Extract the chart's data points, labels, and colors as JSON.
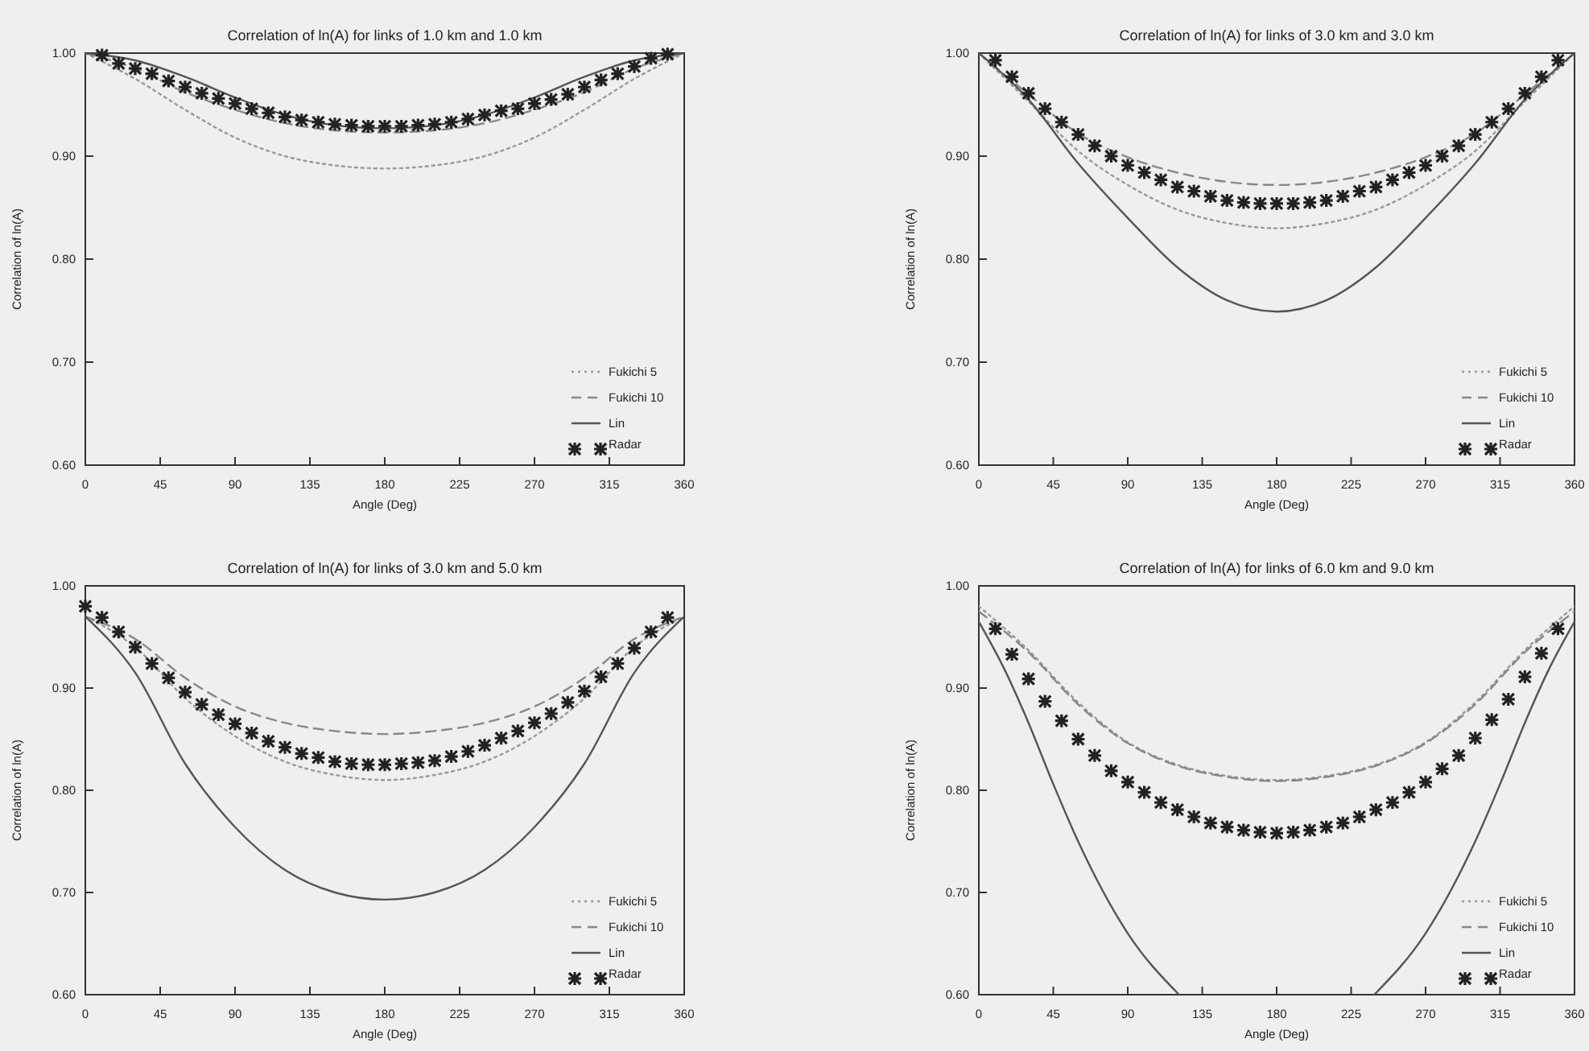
{
  "chart_data": [
    {
      "type": "line",
      "title": "Correlation of ln(A) for links of 1.0 km and 1.0 km",
      "xlabel": "Angle (Deg)",
      "ylabel": "Correlation of ln(A)",
      "xlim": [
        0,
        360
      ],
      "xticks": [
        0,
        45,
        90,
        135,
        180,
        225,
        270,
        315,
        360
      ],
      "ylim": [
        0.6,
        1.0
      ],
      "yticks": [
        {
          "value": 0.6,
          "label": "0.60"
        },
        {
          "value": 0.7,
          "label": "0.70"
        },
        {
          "value": 0.8,
          "label": "0.80"
        },
        {
          "value": 0.9,
          "label": "0.90"
        },
        {
          "value": 1.0,
          "label": "1.00"
        }
      ],
      "legend": "bottom right",
      "grid": false,
      "series": [
        {
          "name": "Fukichi 5",
          "color": "#999999",
          "line_style": "dotted",
          "marker": "none",
          "x": [
            0,
            30,
            60,
            90,
            120,
            150,
            180,
            210,
            240,
            270,
            300,
            330,
            360
          ],
          "values": [
            1.0,
            0.975,
            0.945,
            0.918,
            0.9,
            0.891,
            0.888,
            0.891,
            0.9,
            0.918,
            0.945,
            0.975,
            1.0
          ]
        },
        {
          "name": "Fukichi 10",
          "color": "#888888",
          "line_style": "dashed",
          "marker": "none",
          "x": [
            0,
            30,
            60,
            90,
            120,
            150,
            180,
            210,
            240,
            270,
            300,
            330,
            360
          ],
          "values": [
            1.0,
            0.985,
            0.962,
            0.945,
            0.932,
            0.925,
            0.923,
            0.925,
            0.932,
            0.945,
            0.962,
            0.985,
            1.0
          ]
        },
        {
          "name": "Lin",
          "color": "#555555",
          "line_style": "solid",
          "marker": "none",
          "x": [
            0,
            30,
            60,
            90,
            120,
            150,
            180,
            210,
            240,
            270,
            300,
            330,
            360
          ],
          "values": [
            1.0,
            0.993,
            0.977,
            0.957,
            0.94,
            0.93,
            0.927,
            0.93,
            0.94,
            0.957,
            0.977,
            0.993,
            1.0
          ]
        },
        {
          "name": "Radar",
          "type": "scatter",
          "color": "#222222",
          "marker": "cross",
          "x": [
            10,
            20,
            30,
            40,
            50,
            60,
            70,
            80,
            90,
            100,
            110,
            120,
            130,
            140,
            150,
            160,
            170,
            180,
            190,
            200,
            210,
            220,
            230,
            240,
            250,
            260,
            270,
            280,
            290,
            300,
            310,
            320,
            330,
            340,
            350
          ],
          "values": [
            0.998,
            0.99,
            0.985,
            0.98,
            0.973,
            0.967,
            0.961,
            0.956,
            0.951,
            0.946,
            0.942,
            0.938,
            0.935,
            0.933,
            0.931,
            0.93,
            0.929,
            0.929,
            0.929,
            0.93,
            0.931,
            0.933,
            0.936,
            0.94,
            0.944,
            0.946,
            0.951,
            0.955,
            0.96,
            0.967,
            0.974,
            0.98,
            0.987,
            0.995,
            0.999
          ]
        }
      ]
    },
    {
      "type": "line",
      "title": "Correlation of ln(A) for links of 3.0 km and 3.0 km",
      "xlabel": "Angle (Deg)",
      "ylabel": "Correlation of ln(A)",
      "xlim": [
        0,
        360
      ],
      "xticks": [
        0,
        45,
        90,
        135,
        180,
        225,
        270,
        315,
        360
      ],
      "ylim": [
        0.6,
        1.0
      ],
      "yticks": [
        {
          "value": 0.6,
          "label": "0.60"
        },
        {
          "value": 0.7,
          "label": "0.70"
        },
        {
          "value": 0.8,
          "label": "0.80"
        },
        {
          "value": 0.9,
          "label": "0.90"
        },
        {
          "value": 1.0,
          "label": "1.00"
        }
      ],
      "legend": "bottom right",
      "grid": false,
      "series": [
        {
          "name": "Fukichi 5",
          "color": "#999999",
          "line_style": "dotted",
          "marker": "none",
          "x": [
            0,
            30,
            60,
            90,
            120,
            150,
            180,
            210,
            240,
            270,
            300,
            330,
            360
          ],
          "values": [
            1.0,
            0.953,
            0.905,
            0.872,
            0.848,
            0.835,
            0.83,
            0.835,
            0.848,
            0.872,
            0.905,
            0.953,
            1.0
          ]
        },
        {
          "name": "Fukichi 10",
          "color": "#888888",
          "line_style": "dashed",
          "marker": "none",
          "x": [
            0,
            30,
            60,
            90,
            120,
            150,
            180,
            210,
            240,
            270,
            300,
            330,
            360
          ],
          "values": [
            1.0,
            0.96,
            0.922,
            0.899,
            0.884,
            0.875,
            0.872,
            0.875,
            0.884,
            0.899,
            0.922,
            0.96,
            1.0
          ]
        },
        {
          "name": "Lin",
          "color": "#555555",
          "line_style": "solid",
          "marker": "none",
          "x": [
            0,
            30,
            60,
            90,
            120,
            150,
            180,
            210,
            240,
            270,
            300,
            330,
            360
          ],
          "values": [
            1.0,
            0.955,
            0.893,
            0.84,
            0.792,
            0.76,
            0.749,
            0.76,
            0.792,
            0.84,
            0.893,
            0.955,
            1.0
          ]
        },
        {
          "name": "Radar",
          "type": "scatter",
          "color": "#222222",
          "marker": "cross",
          "x": [
            10,
            20,
            30,
            40,
            50,
            60,
            70,
            80,
            90,
            100,
            110,
            120,
            130,
            140,
            150,
            160,
            170,
            180,
            190,
            200,
            210,
            220,
            230,
            240,
            250,
            260,
            270,
            280,
            290,
            300,
            310,
            320,
            330,
            340,
            350
          ],
          "values": [
            0.993,
            0.977,
            0.961,
            0.946,
            0.933,
            0.921,
            0.91,
            0.9,
            0.891,
            0.884,
            0.877,
            0.87,
            0.866,
            0.861,
            0.857,
            0.855,
            0.854,
            0.854,
            0.854,
            0.855,
            0.857,
            0.861,
            0.866,
            0.87,
            0.877,
            0.884,
            0.891,
            0.9,
            0.91,
            0.921,
            0.933,
            0.946,
            0.961,
            0.977,
            0.993
          ]
        }
      ]
    },
    {
      "type": "line",
      "title": "Correlation of ln(A) for links of 3.0 km and 5.0 km",
      "xlabel": "Angle (Deg)",
      "ylabel": "Correlation of ln(A)",
      "xlim": [
        0,
        360
      ],
      "xticks": [
        0,
        45,
        90,
        135,
        180,
        225,
        270,
        315,
        360
      ],
      "ylim": [
        0.6,
        1.0
      ],
      "yticks": [
        {
          "value": 0.6,
          "label": "0.60"
        },
        {
          "value": 0.7,
          "label": "0.70"
        },
        {
          "value": 0.8,
          "label": "0.80"
        },
        {
          "value": 0.9,
          "label": "0.90"
        },
        {
          "value": 1.0,
          "label": "1.00"
        }
      ],
      "legend": "bottom right",
      "grid": false,
      "series": [
        {
          "name": "Fukichi 5",
          "color": "#999999",
          "line_style": "dotted",
          "marker": "none",
          "x": [
            0,
            30,
            60,
            90,
            120,
            150,
            180,
            210,
            240,
            270,
            300,
            330,
            360
          ],
          "values": [
            0.97,
            0.94,
            0.89,
            0.853,
            0.828,
            0.815,
            0.81,
            0.815,
            0.828,
            0.853,
            0.89,
            0.94,
            0.97
          ]
        },
        {
          "name": "Fukichi 10",
          "color": "#888888",
          "line_style": "dashed",
          "marker": "none",
          "x": [
            0,
            30,
            60,
            90,
            120,
            150,
            180,
            210,
            240,
            270,
            300,
            330,
            360
          ],
          "values": [
            0.97,
            0.948,
            0.91,
            0.882,
            0.866,
            0.858,
            0.855,
            0.858,
            0.866,
            0.882,
            0.91,
            0.948,
            0.97
          ]
        },
        {
          "name": "Lin",
          "color": "#555555",
          "line_style": "solid",
          "marker": "none",
          "x": [
            0,
            30,
            60,
            90,
            120,
            150,
            180,
            210,
            240,
            270,
            300,
            330,
            360
          ],
          "values": [
            0.97,
            0.915,
            0.826,
            0.764,
            0.722,
            0.7,
            0.693,
            0.7,
            0.722,
            0.764,
            0.826,
            0.915,
            0.97
          ]
        },
        {
          "name": "Radar",
          "type": "scatter",
          "color": "#222222",
          "marker": "cross",
          "x": [
            0,
            10,
            20,
            30,
            40,
            50,
            60,
            70,
            80,
            90,
            100,
            110,
            120,
            130,
            140,
            150,
            160,
            170,
            180,
            190,
            200,
            210,
            220,
            230,
            240,
            250,
            260,
            270,
            280,
            290,
            300,
            310,
            320,
            330,
            340,
            350
          ],
          "values": [
            0.98,
            0.969,
            0.955,
            0.94,
            0.924,
            0.91,
            0.896,
            0.884,
            0.874,
            0.865,
            0.856,
            0.848,
            0.842,
            0.836,
            0.832,
            0.828,
            0.826,
            0.825,
            0.825,
            0.826,
            0.827,
            0.829,
            0.833,
            0.838,
            0.844,
            0.851,
            0.858,
            0.866,
            0.875,
            0.886,
            0.897,
            0.911,
            0.924,
            0.939,
            0.955,
            0.969
          ]
        }
      ]
    },
    {
      "type": "line",
      "title": "Correlation of ln(A) for links of 6.0 km and 9.0 km",
      "xlabel": "Angle (Deg)",
      "ylabel": "Correlation of ln(A)",
      "xlim": [
        0,
        360
      ],
      "xticks": [
        0,
        45,
        90,
        135,
        180,
        225,
        270,
        315,
        360
      ],
      "ylim": [
        0.6,
        1.0
      ],
      "yticks": [
        {
          "value": 0.6,
          "label": "0.60"
        },
        {
          "value": 0.7,
          "label": "0.70"
        },
        {
          "value": 0.8,
          "label": "0.80"
        },
        {
          "value": 0.9,
          "label": "0.90"
        },
        {
          "value": 1.0,
          "label": "1.00"
        }
      ],
      "legend": "bottom right",
      "grid": false,
      "series": [
        {
          "name": "Fukichi 5",
          "color": "#999999",
          "line_style": "dotted",
          "marker": "none",
          "x": [
            0,
            30,
            60,
            90,
            120,
            150,
            180,
            210,
            240,
            270,
            300,
            330,
            360
          ],
          "values": [
            0.98,
            0.937,
            0.886,
            0.847,
            0.825,
            0.814,
            0.81,
            0.814,
            0.825,
            0.847,
            0.886,
            0.937,
            0.98
          ]
        },
        {
          "name": "Fukichi 10",
          "color": "#888888",
          "line_style": "dashed",
          "marker": "none",
          "x": [
            0,
            30,
            60,
            90,
            120,
            150,
            180,
            210,
            240,
            270,
            300,
            330,
            360
          ],
          "values": [
            0.975,
            0.935,
            0.884,
            0.846,
            0.824,
            0.813,
            0.809,
            0.813,
            0.824,
            0.846,
            0.884,
            0.935,
            0.975
          ]
        },
        {
          "name": "Lin",
          "color": "#555555",
          "line_style": "solid",
          "marker": "none",
          "x": [
            0,
            15,
            30,
            45,
            60,
            90,
            121,
            180,
            239,
            270,
            300,
            315,
            330,
            345,
            360
          ],
          "values": [
            0.965,
            0.92,
            0.866,
            0.806,
            0.75,
            0.66,
            0.6,
            null,
            0.6,
            0.66,
            0.75,
            0.806,
            0.866,
            0.92,
            0.965
          ]
        },
        {
          "name": "Radar",
          "type": "scatter",
          "color": "#222222",
          "marker": "cross",
          "x": [
            10,
            20,
            30,
            40,
            50,
            60,
            70,
            80,
            90,
            100,
            110,
            120,
            130,
            140,
            150,
            160,
            170,
            180,
            190,
            200,
            210,
            220,
            230,
            240,
            250,
            260,
            270,
            280,
            290,
            300,
            310,
            320,
            330,
            340,
            350
          ],
          "values": [
            0.958,
            0.933,
            0.909,
            0.887,
            0.868,
            0.85,
            0.834,
            0.819,
            0.808,
            0.798,
            0.788,
            0.781,
            0.774,
            0.768,
            0.764,
            0.761,
            0.759,
            0.758,
            0.759,
            0.761,
            0.764,
            0.768,
            0.774,
            0.781,
            0.788,
            0.798,
            0.808,
            0.821,
            0.834,
            0.851,
            0.869,
            0.889,
            0.911,
            0.934,
            0.958
          ]
        }
      ]
    }
  ]
}
